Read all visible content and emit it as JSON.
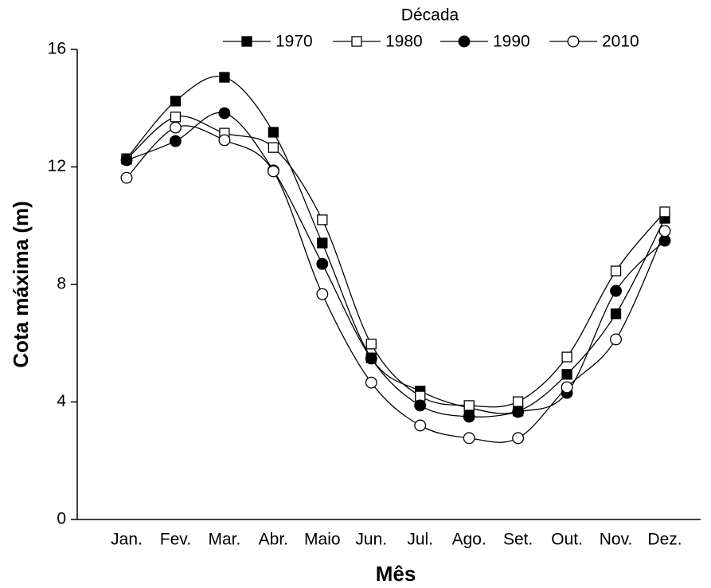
{
  "chart_data": {
    "type": "line",
    "xlabel": "Mês",
    "ylabel": "Cota máxima (m)",
    "legend_title": "Década",
    "categories": [
      "Jan.",
      "Fev.",
      "Mar.",
      "Abr.",
      "Maio",
      "Jun.",
      "Jul.",
      "Ago.",
      "Set.",
      "Out.",
      "Nov.",
      "Dez."
    ],
    "ylim": [
      0,
      16
    ],
    "yticks": [
      0,
      4,
      8,
      12,
      16
    ],
    "legend": "top",
    "series": [
      {
        "name": "1970",
        "color": "#000000",
        "marker": "square",
        "filled": true,
        "values": [
          12.28,
          14.24,
          15.05,
          13.18,
          9.41,
          5.5,
          4.37,
          3.8,
          3.69,
          4.94,
          7.0,
          10.25
        ]
      },
      {
        "name": "1980",
        "color": "#000000",
        "marker": "square",
        "filled": false,
        "values": [
          12.26,
          13.7,
          13.15,
          12.66,
          10.2,
          5.97,
          4.2,
          3.88,
          4.01,
          5.53,
          8.46,
          10.47
        ]
      },
      {
        "name": "1990",
        "color": "#000000",
        "marker": "circle",
        "filled": true,
        "values": [
          12.23,
          12.88,
          13.83,
          11.88,
          8.7,
          5.48,
          3.88,
          3.5,
          3.66,
          4.31,
          7.78,
          9.49
        ]
      },
      {
        "name": "2010",
        "color": "#000000",
        "marker": "circle",
        "filled": false,
        "values": [
          11.63,
          13.34,
          12.91,
          11.85,
          7.67,
          4.66,
          3.2,
          2.77,
          2.77,
          4.5,
          6.13,
          9.82
        ]
      }
    ]
  }
}
